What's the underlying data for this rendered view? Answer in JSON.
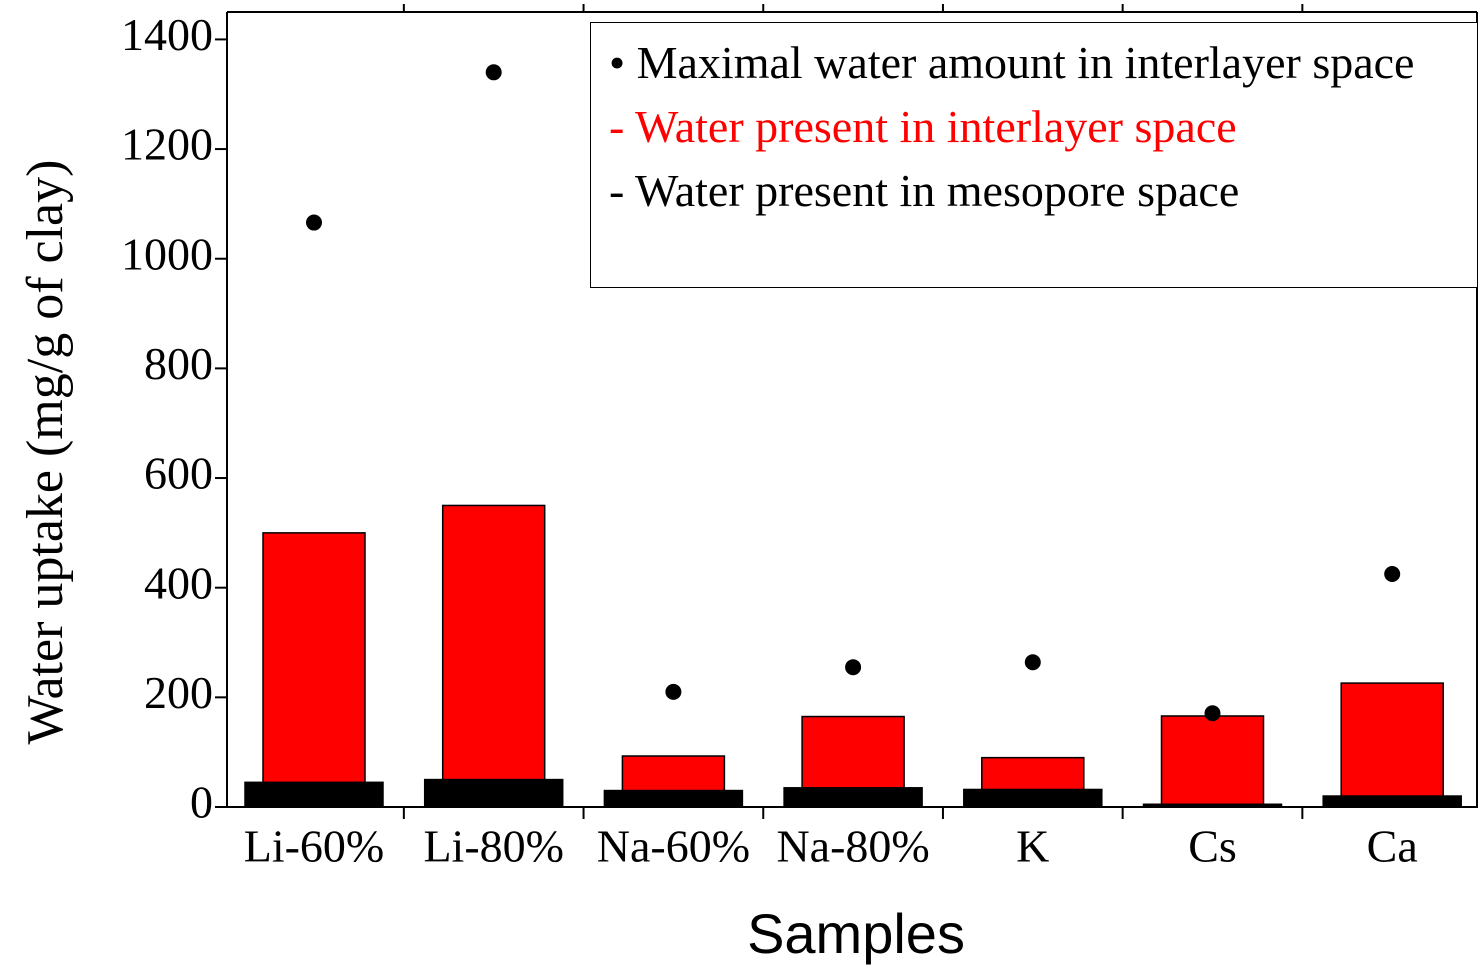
{
  "chart_data": {
    "type": "bar",
    "x_label": "Samples",
    "y_label": "Water uptake (mg/g of clay)",
    "categories": [
      "Li-60%",
      "Li-80%",
      "Na-60%",
      "Na-80%",
      "K",
      "Cs",
      "Ca"
    ],
    "series": [
      {
        "name": "- Water present in interlayer space",
        "type": "bar",
        "color": "#ff0000",
        "values": [
          500,
          550,
          93,
          165,
          90,
          166,
          226
        ]
      },
      {
        "name": "- Water present in mesopore space",
        "type": "bar",
        "color": "#000000",
        "values": [
          45,
          50,
          30,
          35,
          32,
          5,
          20
        ]
      },
      {
        "name": "• Maximal water amount in interlayer space",
        "type": "scatter",
        "color": "#000000",
        "values": [
          1066,
          1340,
          210,
          255,
          264,
          171,
          425
        ]
      }
    ],
    "ylim": [
      0,
      1450
    ],
    "yticks": [
      0,
      200,
      400,
      600,
      800,
      1000,
      1200,
      1400
    ],
    "legend_position": "top-right"
  }
}
